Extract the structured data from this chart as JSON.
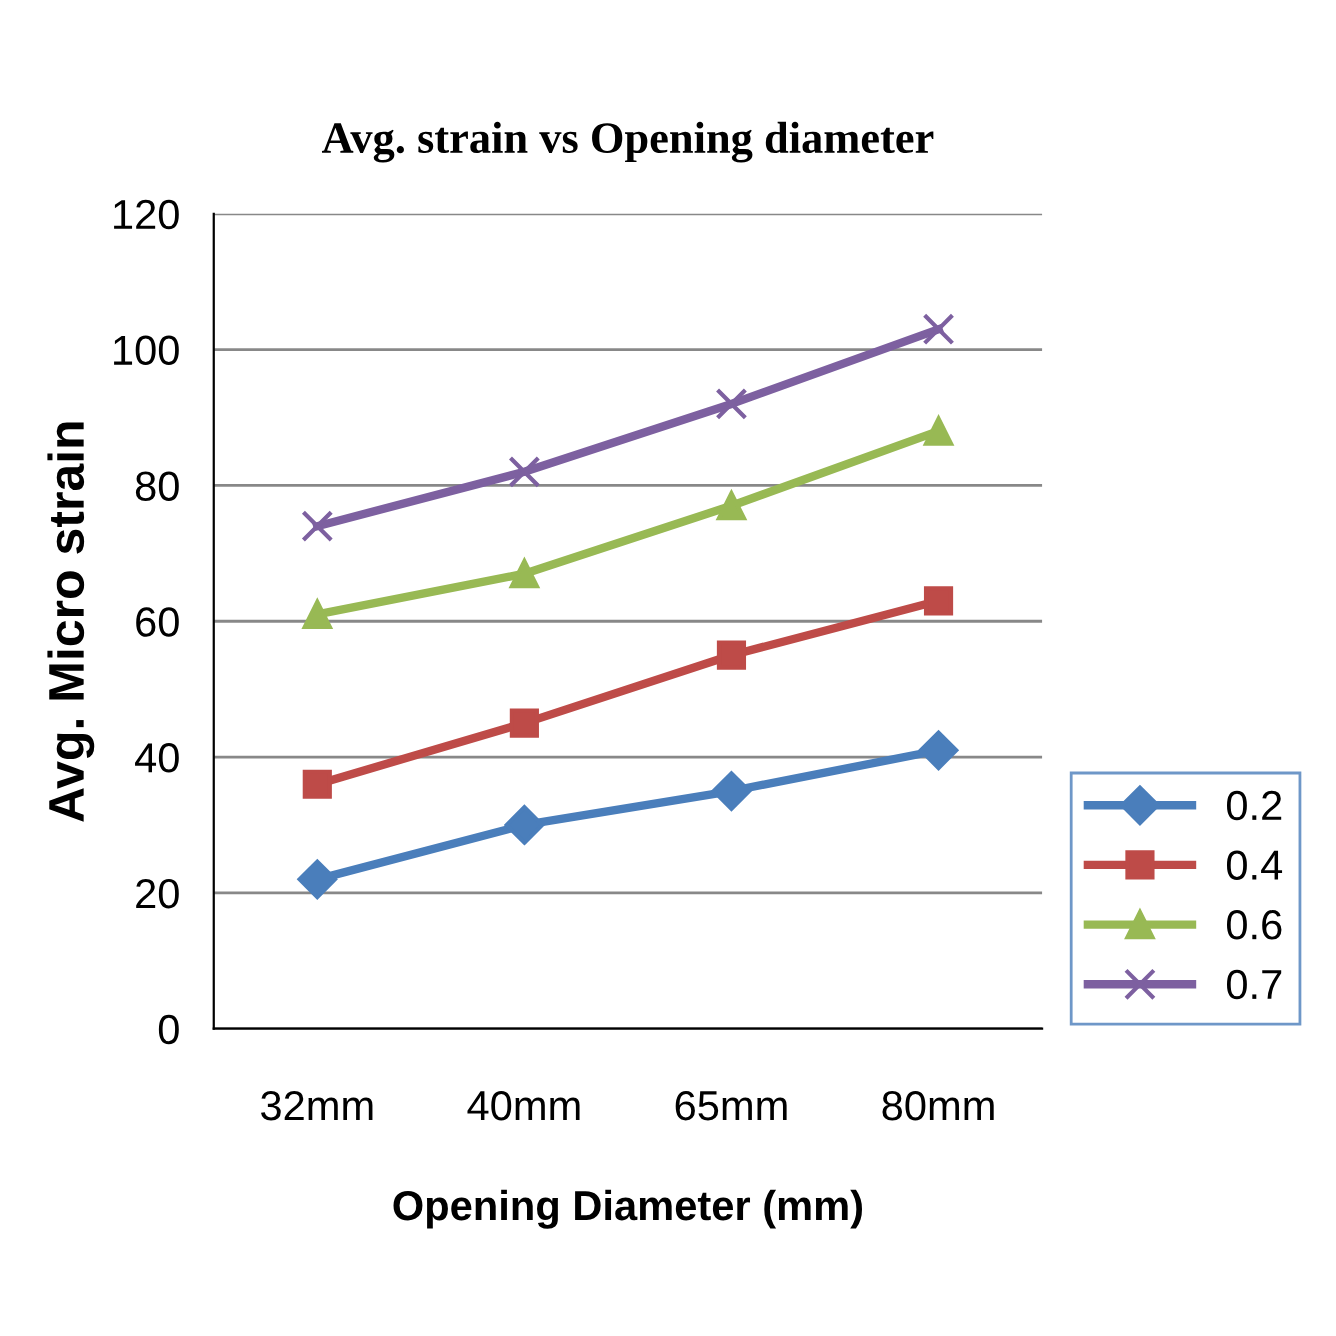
{
  "chart_data": {
    "type": "line",
    "title": "Avg. strain vs Opening diameter",
    "xlabel": "Opening Diameter (mm)",
    "ylabel": "Avg. Micro strain",
    "categories": [
      "32mm",
      "40mm",
      "65mm",
      "80mm"
    ],
    "series": [
      {
        "name": "0.2",
        "color": "#4a7ebb",
        "marker": "diamond",
        "values": [
          22,
          30,
          35,
          41
        ]
      },
      {
        "name": "0.4",
        "color": "#be4b48",
        "marker": "square",
        "values": [
          36,
          45,
          55,
          63
        ]
      },
      {
        "name": "0.6",
        "color": "#98b954",
        "marker": "triangle",
        "values": [
          61,
          67,
          77,
          88
        ]
      },
      {
        "name": "0.7",
        "color": "#7d60a0",
        "marker": "cross",
        "values": [
          74,
          82,
          92,
          103
        ]
      }
    ],
    "ylim": [
      0,
      120
    ],
    "yticks": [
      0,
      20,
      40,
      60,
      80,
      100,
      120
    ],
    "grid": "y",
    "legend": "right",
    "line_style": "solid"
  }
}
